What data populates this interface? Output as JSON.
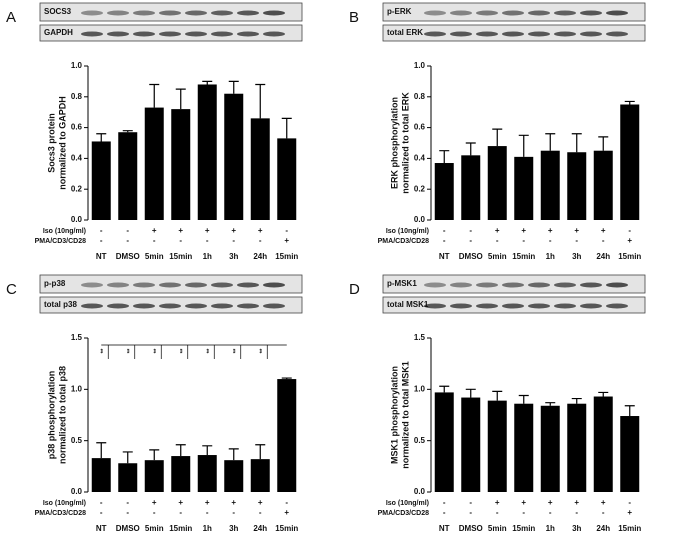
{
  "chart_data": [
    {
      "type": "bar",
      "panel": "A",
      "blot_labels": [
        "SOCS3",
        "GAPDH"
      ],
      "ylabel": [
        "Socs3 protein",
        "normalized to GAPDH"
      ],
      "categories": [
        "NT",
        "DMSO",
        "5min",
        "15min",
        "1h",
        "3h",
        "24h",
        "15min"
      ],
      "values": [
        0.51,
        0.57,
        0.73,
        0.72,
        0.88,
        0.82,
        0.66,
        0.53
      ],
      "errors": [
        0.05,
        0.01,
        0.15,
        0.13,
        0.02,
        0.08,
        0.22,
        0.13
      ],
      "color": "#000000",
      "ylim": [
        0,
        1
      ],
      "yticks": [
        {
          "value": 0,
          "label": "0.0"
        },
        0.2,
        0.4,
        0.6,
        0.8,
        {
          "value": 1,
          "label": "1.0"
        }
      ],
      "treatments": [
        {
          "name": "Iso (10ng/ml)",
          "signs": [
            "-",
            "-",
            "+",
            "+",
            "+",
            "+",
            "+",
            "-"
          ]
        },
        {
          "name": "PMA/CD3/CD28",
          "signs": [
            "-",
            "-",
            "-",
            "-",
            "-",
            "-",
            "-",
            "+"
          ]
        }
      ]
    },
    {
      "type": "bar",
      "panel": "B",
      "blot_labels": [
        "p-ERK",
        "total ERK"
      ],
      "ylabel": [
        "ERK phosphorylation",
        "normalized to total ERK"
      ],
      "categories": [
        "NT",
        "DMSO",
        "5min",
        "15min",
        "1h",
        "3h",
        "24h",
        "15min"
      ],
      "values": [
        0.37,
        0.42,
        0.48,
        0.41,
        0.45,
        0.44,
        0.45,
        0.75
      ],
      "errors": [
        0.08,
        0.08,
        0.11,
        0.14,
        0.11,
        0.12,
        0.09,
        0.02
      ],
      "color": "#000000",
      "ylim": [
        0,
        1
      ],
      "yticks": [
        {
          "value": 0,
          "label": "0.0"
        },
        0.2,
        0.4,
        0.6,
        0.8,
        {
          "value": 1,
          "label": "1.0"
        }
      ],
      "treatments": [
        {
          "name": "Iso (10ng/ml)",
          "signs": [
            "-",
            "-",
            "+",
            "+",
            "+",
            "+",
            "+",
            "-"
          ]
        },
        {
          "name": "PMA/CD3/CD28",
          "signs": [
            "-",
            "-",
            "-",
            "-",
            "-",
            "-",
            "-",
            "+"
          ]
        }
      ]
    },
    {
      "type": "bar",
      "panel": "C",
      "blot_labels": [
        "p-p38",
        "total p38"
      ],
      "ylabel": [
        "p38 phosphorylation",
        "normalized to total p38"
      ],
      "categories": [
        "NT",
        "DMSO",
        "5min",
        "15min",
        "1h",
        "3h",
        "24h",
        "15min"
      ],
      "values": [
        0.33,
        0.28,
        0.31,
        0.35,
        0.36,
        0.31,
        0.32,
        1.1
      ],
      "errors": [
        0.15,
        0.11,
        0.1,
        0.11,
        0.09,
        0.11,
        0.14,
        0.01
      ],
      "significance": [
        "**",
        "**",
        "**",
        "**",
        "**",
        "**",
        "**"
      ],
      "color": "#000000",
      "ylim": [
        0,
        1.5
      ],
      "yticks": [
        {
          "value": 0,
          "label": "0.0"
        },
        0.5,
        {
          "value": 1,
          "label": "1.0"
        },
        1.5
      ],
      "treatments": [
        {
          "name": "Iso (10ng/ml)",
          "signs": [
            "-",
            "-",
            "+",
            "+",
            "+",
            "+",
            "+",
            "-"
          ]
        },
        {
          "name": "PMA/CD3/CD28",
          "signs": [
            "-",
            "-",
            "-",
            "-",
            "-",
            "-",
            "-",
            "+"
          ]
        }
      ]
    },
    {
      "type": "bar",
      "panel": "D",
      "blot_labels": [
        "p-MSK1",
        "total MSK1"
      ],
      "ylabel": [
        "MSK1 phosphorylation",
        "normalized to total MSK1"
      ],
      "categories": [
        "NT",
        "DMSO",
        "5min",
        "15min",
        "1h",
        "3h",
        "24h",
        "15min"
      ],
      "values": [
        0.97,
        0.92,
        0.89,
        0.86,
        0.84,
        0.86,
        0.93,
        0.74
      ],
      "errors": [
        0.06,
        0.08,
        0.09,
        0.08,
        0.03,
        0.05,
        0.04,
        0.1
      ],
      "color": "#000000",
      "ylim": [
        0,
        1.5
      ],
      "yticks": [
        {
          "value": 0,
          "label": "0.0"
        },
        0.5,
        {
          "value": 1,
          "label": "1.0"
        },
        1.5
      ],
      "treatments": [
        {
          "name": "Iso (10ng/ml)",
          "signs": [
            "-",
            "-",
            "+",
            "+",
            "+",
            "+",
            "+",
            "-"
          ]
        },
        {
          "name": "PMA/CD3/CD28",
          "signs": [
            "-",
            "-",
            "-",
            "-",
            "-",
            "-",
            "-",
            "+"
          ]
        }
      ]
    }
  ]
}
